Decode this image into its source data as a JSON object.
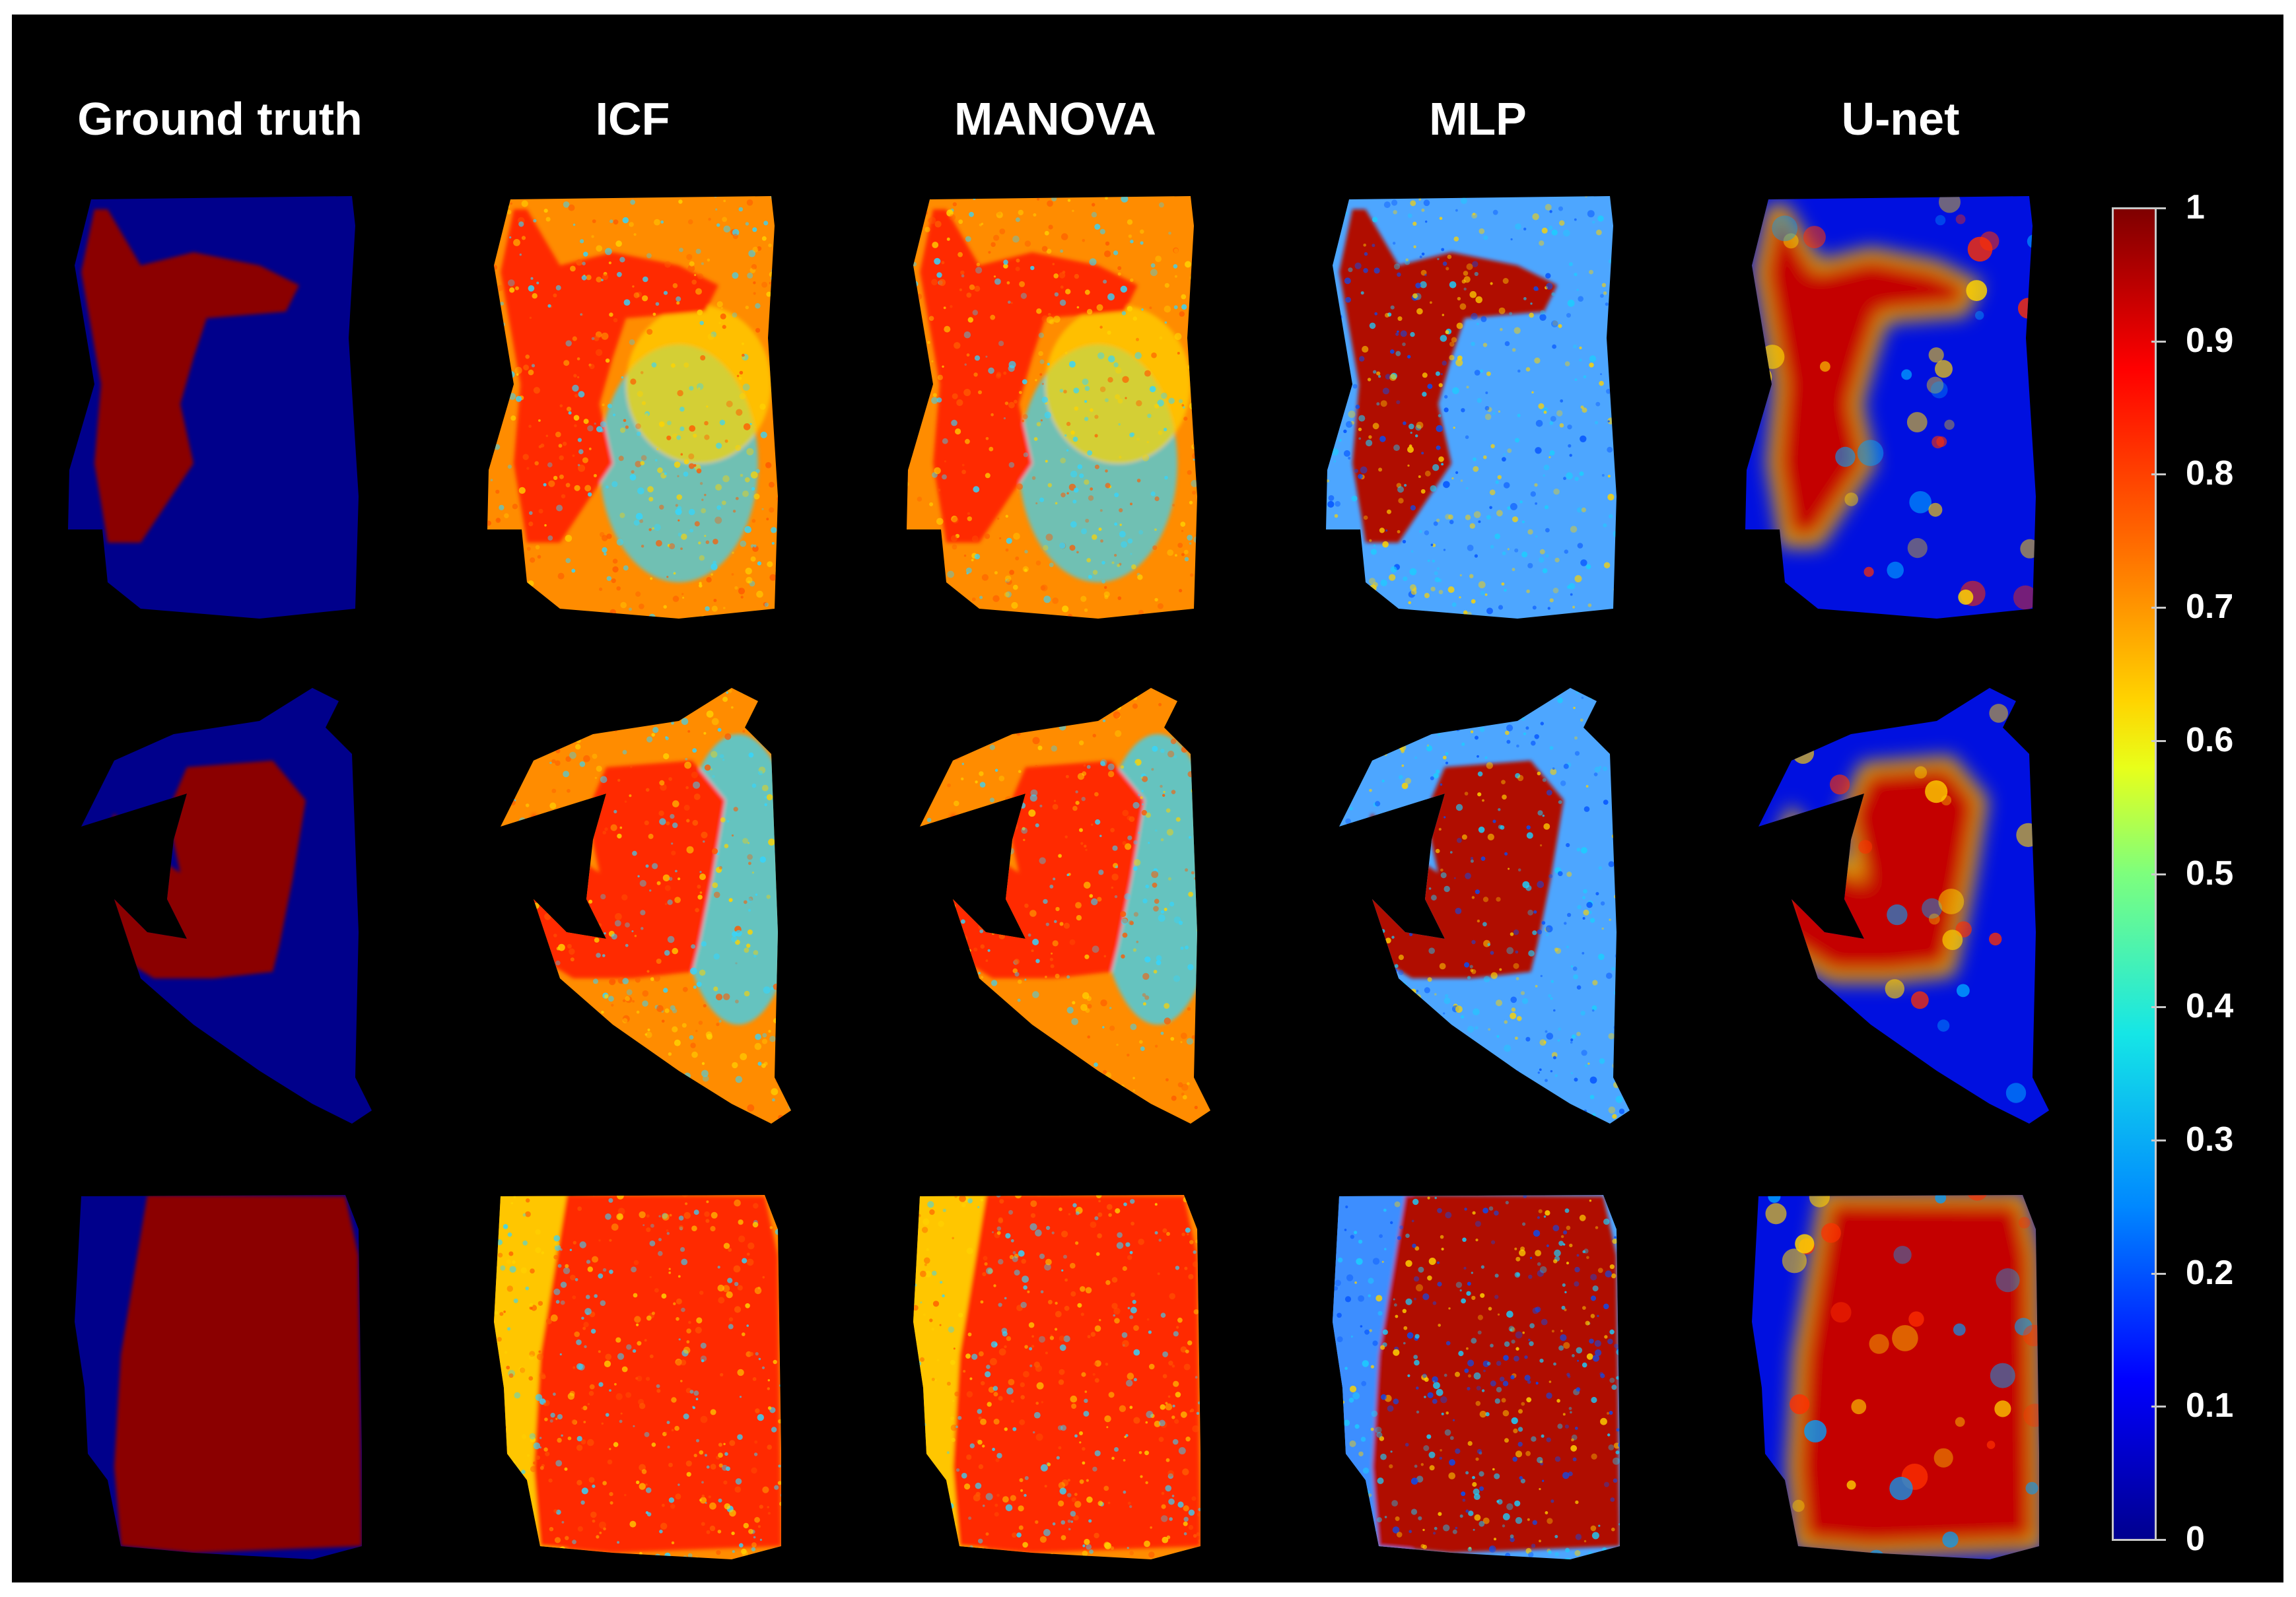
{
  "columns": [
    {
      "title": "Ground truth",
      "style": "truth"
    },
    {
      "title": "ICF",
      "style": "icf"
    },
    {
      "title": "MANOVA",
      "style": "icf"
    },
    {
      "title": "MLP",
      "style": "mlp"
    },
    {
      "title": "U-net",
      "style": "unet"
    }
  ],
  "rows": 3,
  "colorbar": {
    "ticks": [
      "1",
      "0.9",
      "0.8",
      "0.7",
      "0.6",
      "0.5",
      "0.4",
      "0.3",
      "0.2",
      "0.1",
      "0"
    ],
    "colormap": "jet",
    "range": [
      0,
      1
    ]
  },
  "colors": {
    "background": "#000000",
    "dark_red": "#8b0000",
    "dark_blue": "#00008b",
    "orange": "#ff8c00",
    "red": "#ff2a00",
    "yellow": "#ffd400",
    "cyan": "#33d6ff",
    "light_blue": "#4da6ff"
  }
}
